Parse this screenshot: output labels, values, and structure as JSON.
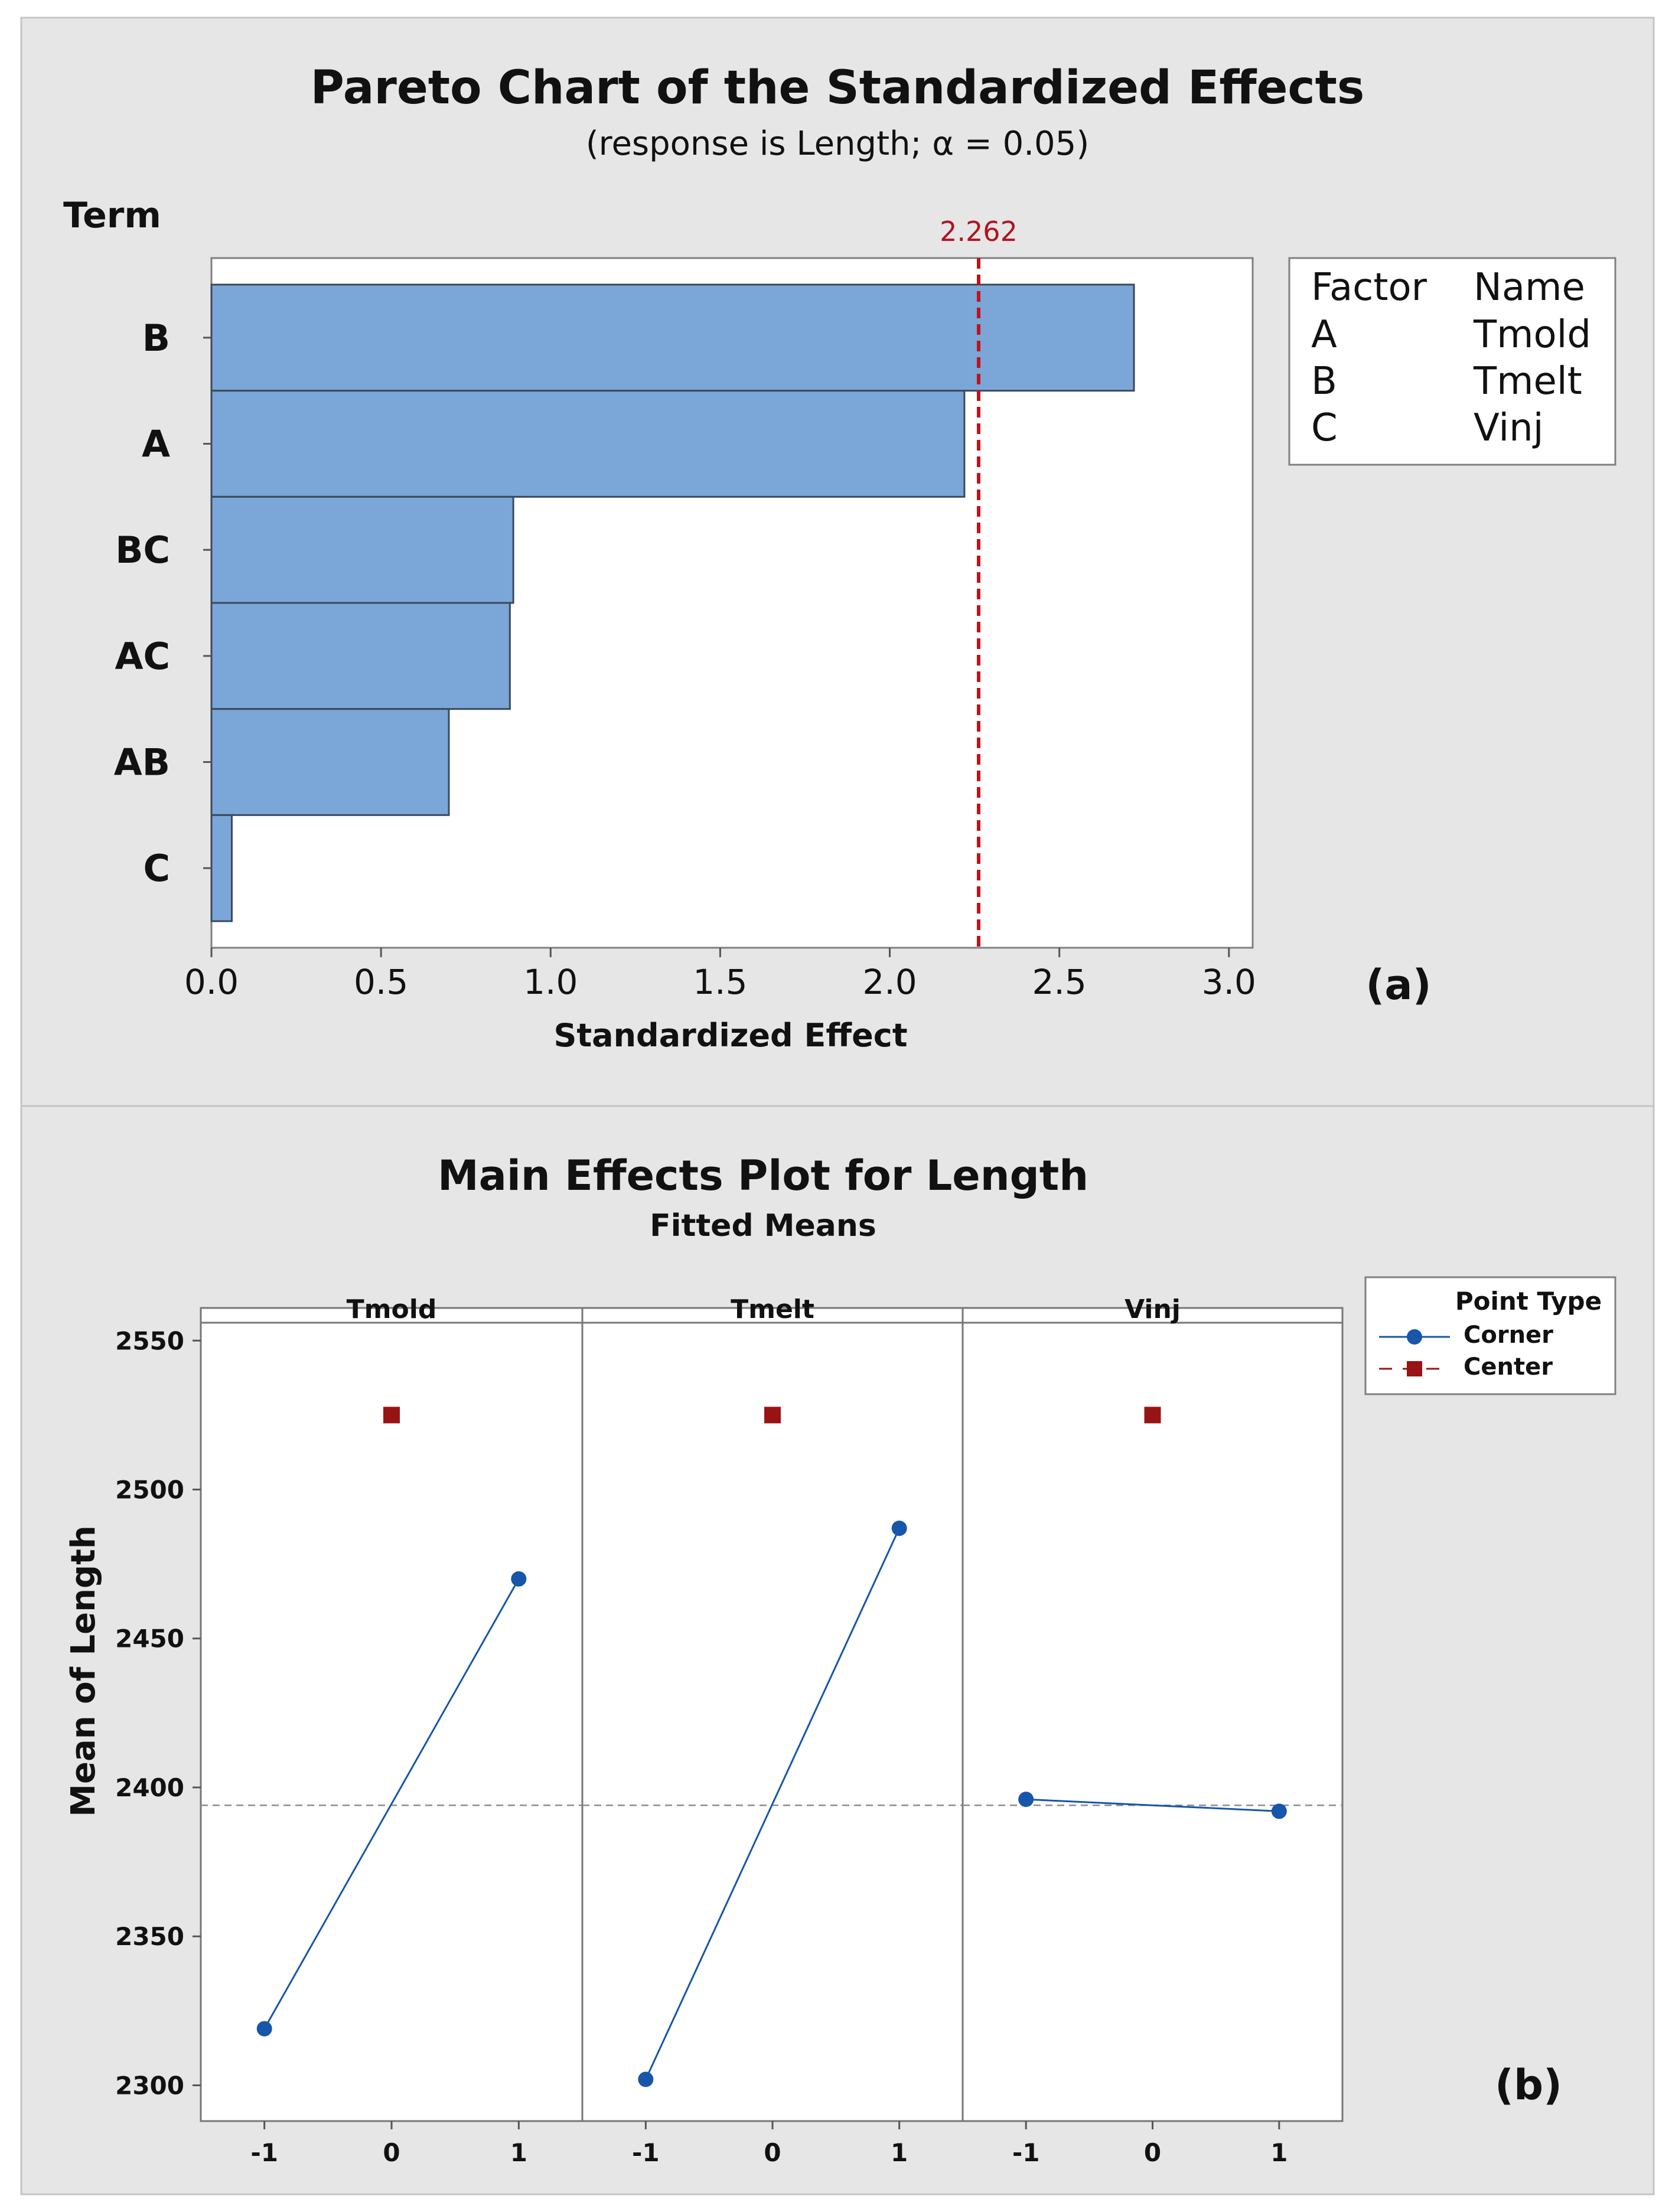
{
  "colors": {
    "panel_bg": "#e6e6e6",
    "plot_bg": "#ffffff",
    "bar_fill": "#7ba6d8",
    "bar_stroke": "#3a4a5c",
    "ref_line": "#c0121b",
    "corner": "#1756a9",
    "center": "#981414",
    "grid_ref": "#8c8c8c",
    "text": "#111111"
  },
  "panel_a": {
    "label": "(a)",
    "legend": {
      "header_factor": "Factor",
      "header_name": "Name",
      "rows": [
        {
          "factor": "A",
          "name": "Tmold"
        },
        {
          "factor": "B",
          "name": "Tmelt"
        },
        {
          "factor": "C",
          "name": "Vinj"
        }
      ]
    }
  },
  "panel_b": {
    "label": "(b)",
    "legend": {
      "title": "Point Type",
      "items": [
        {
          "name": "Corner",
          "icon": "circle-marker-solid-line"
        },
        {
          "name": "Center",
          "icon": "square-marker-dashed-line"
        }
      ]
    }
  },
  "chart_data": [
    {
      "type": "bar",
      "orientation": "horizontal",
      "title": "Pareto Chart of the Standardized Effects",
      "subtitle": "(response is Length; α = 0.05)",
      "ylabel": "Term",
      "xlabel": "Standardized Effect",
      "categories": [
        "B",
        "A",
        "BC",
        "AC",
        "AB",
        "C"
      ],
      "values": [
        2.72,
        2.22,
        0.89,
        0.88,
        0.7,
        0.06
      ],
      "xlim": [
        0,
        3.07
      ],
      "xticks": [
        0.0,
        0.5,
        1.0,
        1.5,
        2.0,
        2.5,
        3.0
      ],
      "xtick_labels": [
        "0.0",
        "0.5",
        "1.0",
        "1.5",
        "2.0",
        "2.5",
        "3.0"
      ],
      "reference_line": {
        "value": 2.262,
        "label": "2.262"
      },
      "grid": false,
      "legend_placement": "right"
    },
    {
      "type": "line",
      "title": "Main Effects Plot for Length",
      "subtitle": "Fitted Means",
      "ylabel": "Mean of Length",
      "ylim": [
        2288,
        2556
      ],
      "yticks": [
        2300,
        2350,
        2400,
        2450,
        2500,
        2550
      ],
      "ytick_labels": [
        "2300",
        "2350",
        "2400",
        "2450",
        "2500",
        "2550"
      ],
      "xlim": [
        -1.5,
        1.5
      ],
      "xticks": [
        -1,
        0,
        1
      ],
      "xtick_labels": [
        "-1",
        "0",
        "1"
      ],
      "overall_mean": 2394,
      "panels": [
        {
          "name": "Tmold",
          "series": [
            {
              "name": "Corner",
              "x": [
                -1,
                1
              ],
              "y": [
                2319,
                2470
              ]
            },
            {
              "name": "Center",
              "x": [
                0
              ],
              "y": [
                2525
              ]
            }
          ]
        },
        {
          "name": "Tmelt",
          "series": [
            {
              "name": "Corner",
              "x": [
                -1,
                1
              ],
              "y": [
                2302,
                2487
              ]
            },
            {
              "name": "Center",
              "x": [
                0
              ],
              "y": [
                2525
              ]
            }
          ]
        },
        {
          "name": "Vinj",
          "series": [
            {
              "name": "Corner",
              "x": [
                -1,
                1
              ],
              "y": [
                2396,
                2392
              ]
            },
            {
              "name": "Center",
              "x": [
                0
              ],
              "y": [
                2525
              ]
            }
          ]
        }
      ],
      "grid": false,
      "legend_placement": "right"
    }
  ]
}
